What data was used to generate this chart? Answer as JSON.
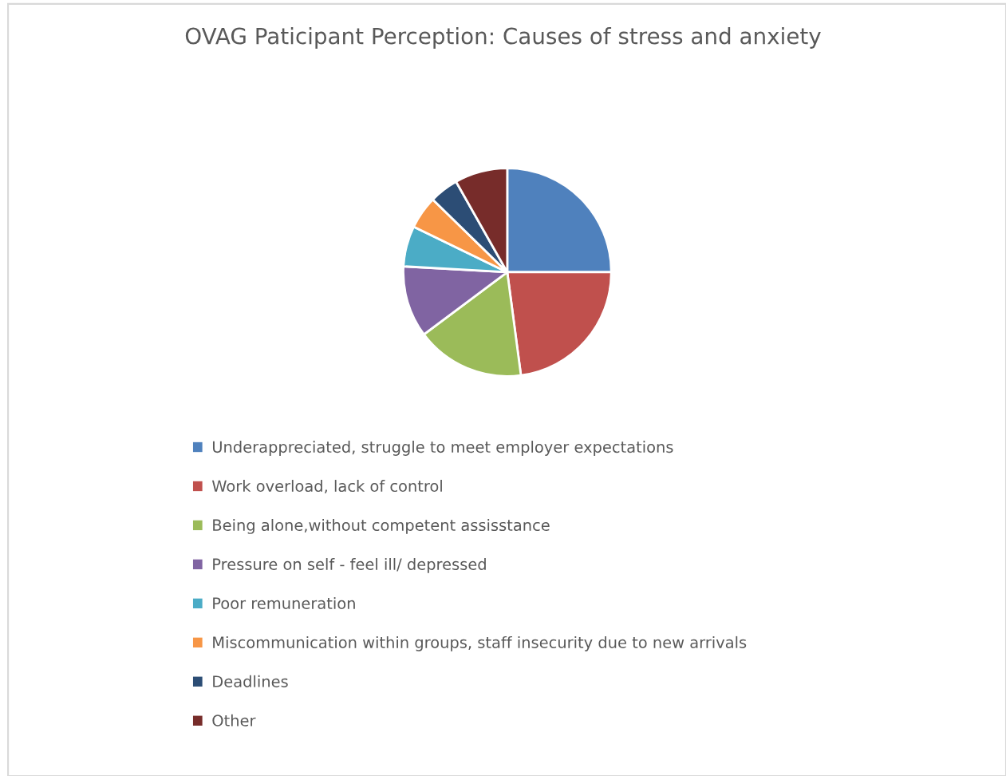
{
  "chart_data": {
    "type": "pie",
    "title": "OVAG Paticipant Perception: Causes of stress and anxiety",
    "categories": [
      "Underappreciated, struggle to meet employer expectations",
      "Work overload, lack of control",
      "Being alone,without competent assisstance",
      "Pressure on self - feel ill/ depressed",
      "Poor remuneration",
      "Miscommunication within groups, staff insecurity due to new arrivals",
      "Deadlines",
      "Other"
    ],
    "values": [
      25,
      22.9,
      16.9,
      11.1,
      6.3,
      5.1,
      4.5,
      8.2
    ],
    "colors": [
      "#4f81bd",
      "#c0504d",
      "#9bbb59",
      "#8064a2",
      "#4bacc6",
      "#f79646",
      "#2c4d75",
      "#772c2a"
    ],
    "legend": "bottom"
  }
}
